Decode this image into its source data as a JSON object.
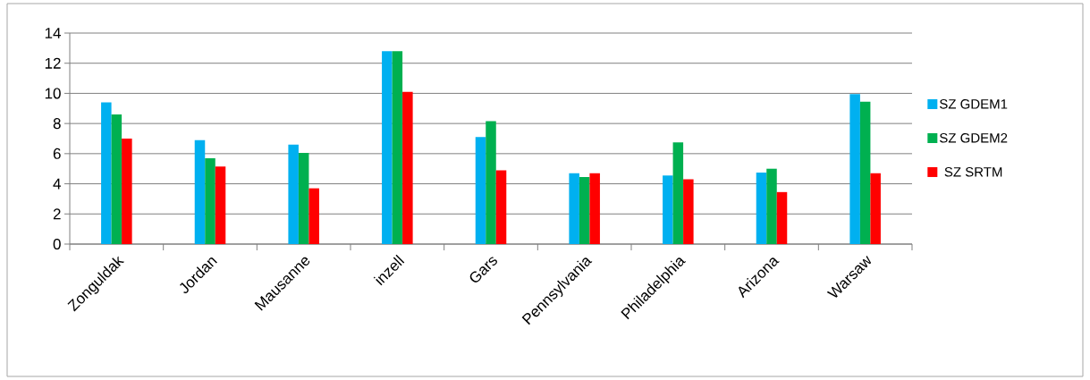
{
  "chart_data": {
    "type": "bar",
    "categories": [
      "Zonguldak",
      "Jordan",
      "Mausanne",
      "inzell",
      "Gars",
      "Pennsylvania",
      "Philadelphia",
      "Arizona",
      "Warsaw"
    ],
    "series": [
      {
        "name": "SZ GDEM1",
        "color": "#00b0f0",
        "values": [
          9.4,
          6.9,
          6.6,
          12.8,
          7.1,
          4.7,
          4.55,
          4.75,
          9.95
        ]
      },
      {
        "name": "SZ GDEM2",
        "color": "#00b050",
        "values": [
          8.6,
          5.7,
          6.05,
          12.8,
          8.15,
          4.45,
          6.75,
          5.0,
          9.45
        ]
      },
      {
        "name": "SZ SRTM",
        "color": "#ff0000",
        "values": [
          7.0,
          5.15,
          3.7,
          10.1,
          4.9,
          4.7,
          4.3,
          3.45,
          4.7
        ]
      }
    ],
    "ylim": [
      0,
      14
    ],
    "yticks": [
      0,
      2,
      4,
      6,
      8,
      10,
      12,
      14
    ],
    "grid": "y",
    "legend": "right"
  }
}
